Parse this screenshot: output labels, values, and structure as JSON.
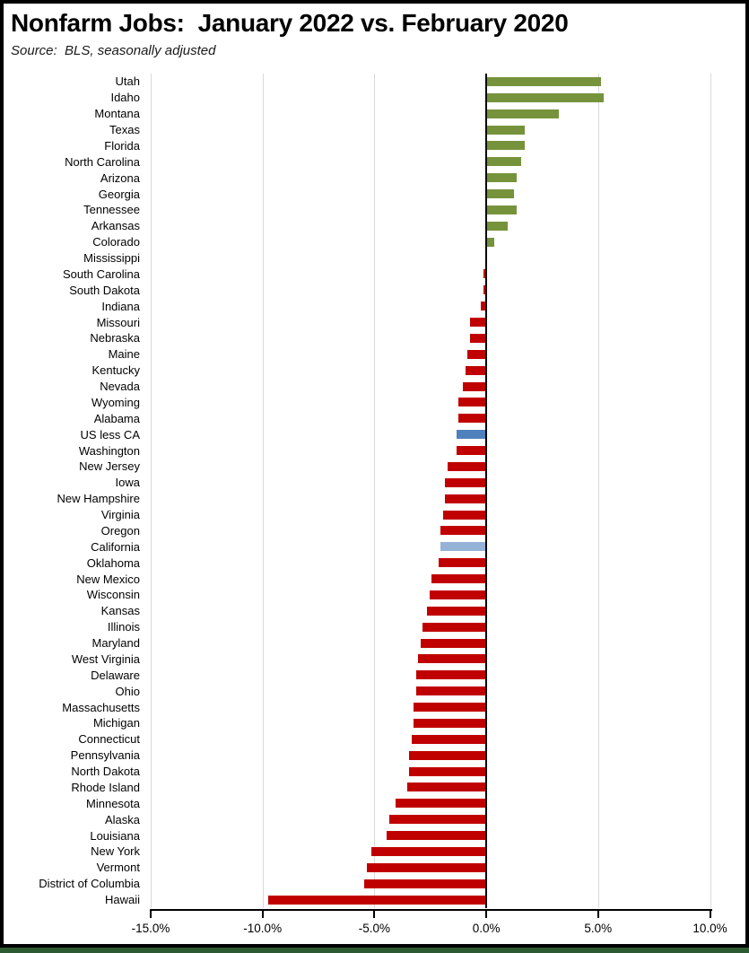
{
  "header": {
    "title": "Nonfarm Jobs:  January 2022 vs. February 2020",
    "subtitle": "Source:  BLS, seasonally adjusted"
  },
  "chart_data": {
    "type": "bar",
    "orientation": "horizontal",
    "title": "Nonfarm Jobs:  January 2022 vs. February 2020",
    "subtitle": "Source:  BLS, seasonally adjusted",
    "xlabel": "",
    "ylabel": "",
    "xlim": [
      -15,
      10
    ],
    "tick_values": [
      -15,
      -10,
      -5,
      0,
      5,
      10
    ],
    "tick_labels": [
      "-15.0%",
      "-10.0%",
      "-5.0%",
      "0.0%",
      "5.0%",
      "10.0%"
    ],
    "grid": "vertical-only",
    "legend": "none",
    "unit": "percent",
    "categories": [
      "Utah",
      "Idaho",
      "Montana",
      "Texas",
      "Florida",
      "North Carolina",
      "Arizona",
      "Georgia",
      "Tennessee",
      "Arkansas",
      "Colorado",
      "Mississippi",
      "South Carolina",
      "South Dakota",
      "Indiana",
      "Missouri",
      "Nebraska",
      "Maine",
      "Kentucky",
      "Nevada",
      "Wyoming",
      "Alabama",
      "US less CA",
      "Washington",
      "New Jersey",
      "Iowa",
      "New Hampshire",
      "Virginia",
      "Oregon",
      "California",
      "Oklahoma",
      "New Mexico",
      "Wisconsin",
      "Kansas",
      "Illinois",
      "Maryland",
      "West Virginia",
      "Delaware",
      "Ohio",
      "Massachusetts",
      "Michigan",
      "Connecticut",
      "Pennsylvania",
      "North Dakota",
      "Rhode Island",
      "Minnesota",
      "Alaska",
      "Louisiana",
      "New York",
      "Vermont",
      "District of Columbia",
      "Hawaii"
    ],
    "values": [
      5.1,
      5.2,
      3.2,
      1.7,
      1.7,
      1.5,
      1.3,
      1.2,
      1.3,
      0.9,
      0.3,
      0.0,
      -0.1,
      -0.1,
      -0.2,
      -0.7,
      -0.7,
      -0.8,
      -0.9,
      -1.0,
      -1.2,
      -1.2,
      -1.3,
      -1.3,
      -1.7,
      -1.8,
      -1.8,
      -1.9,
      -2.0,
      -2.0,
      -2.1,
      -2.4,
      -2.5,
      -2.6,
      -2.8,
      -2.9,
      -3.0,
      -3.1,
      -3.1,
      -3.2,
      -3.2,
      -3.3,
      -3.4,
      -3.4,
      -3.5,
      -4.0,
      -4.3,
      -4.4,
      -5.1,
      -5.3,
      -5.4,
      -9.7
    ],
    "colors": {
      "positive": "#76933C",
      "negative": "#C00000",
      "gridline": "#D9D9D9",
      "zero_line": "#000000",
      "frame_border": "#000000",
      "bottom_strip": "#2D5A33"
    },
    "highlight_colors": {
      "US less CA": "#4F81BD",
      "California": "#95B3D7"
    }
  }
}
